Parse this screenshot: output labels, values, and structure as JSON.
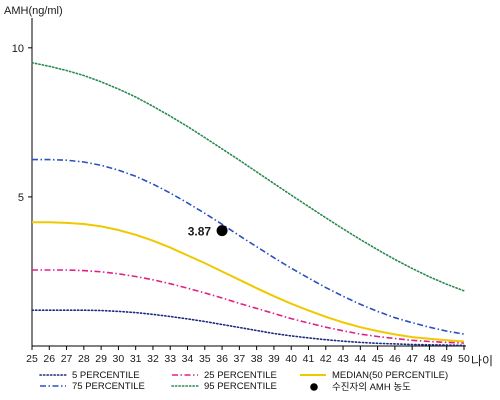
{
  "chart_data": {
    "type": "line",
    "ylabel": "AMH(ng/ml)",
    "xlabel": "나이",
    "x": [
      25,
      26,
      27,
      28,
      29,
      30,
      31,
      32,
      33,
      34,
      35,
      36,
      37,
      38,
      39,
      40,
      41,
      42,
      43,
      44,
      45,
      46,
      47,
      48,
      49,
      50
    ],
    "x_tick_labels": [
      "25",
      "26",
      "27",
      "28",
      "29",
      "30",
      "31",
      "32",
      "33",
      "34",
      "35",
      "36",
      "37",
      "38",
      "39",
      "40",
      "41",
      "42",
      "43",
      "44",
      "45",
      "46",
      "47",
      "48",
      "49",
      "50"
    ],
    "y_ticks": [
      5,
      10
    ],
    "y_tick_labels": [
      "5",
      "10"
    ],
    "ylim": [
      0,
      11
    ],
    "grid": false,
    "legend_position": "bottom",
    "series": [
      {
        "name": "5 PERCENTILE",
        "color": "#1a2a80",
        "dash": "dotted",
        "values": [
          1.2,
          1.2,
          1.2,
          1.2,
          1.19,
          1.16,
          1.12,
          1.06,
          0.99,
          0.91,
          0.82,
          0.72,
          0.62,
          0.52,
          0.42,
          0.34,
          0.27,
          0.21,
          0.16,
          0.12,
          0.09,
          0.07,
          0.05,
          0.04,
          0.03,
          0.02
        ]
      },
      {
        "name": "25 PERCENTILE",
        "color": "#e0208a",
        "dash": "dashdot",
        "values": [
          2.55,
          2.55,
          2.55,
          2.53,
          2.49,
          2.42,
          2.33,
          2.22,
          2.09,
          1.94,
          1.78,
          1.61,
          1.43,
          1.26,
          1.09,
          0.92,
          0.77,
          0.63,
          0.51,
          0.4,
          0.32,
          0.25,
          0.19,
          0.15,
          0.12,
          0.1
        ]
      },
      {
        "name": "MEDIAN(50 PERCENTILE)",
        "color": "#f0c800",
        "dash": "solid",
        "values": [
          4.15,
          4.15,
          4.13,
          4.09,
          4.01,
          3.89,
          3.73,
          3.53,
          3.3,
          3.04,
          2.78,
          2.5,
          2.22,
          1.94,
          1.67,
          1.42,
          1.19,
          0.98,
          0.79,
          0.63,
          0.5,
          0.39,
          0.3,
          0.24,
          0.19,
          0.15
        ]
      },
      {
        "name": "75 PERCENTILE",
        "color": "#2a50c0",
        "dash": "dashdot",
        "values": [
          6.25,
          6.25,
          6.23,
          6.17,
          6.06,
          5.9,
          5.69,
          5.43,
          5.13,
          4.8,
          4.45,
          4.08,
          3.7,
          3.33,
          2.96,
          2.61,
          2.28,
          1.96,
          1.67,
          1.4,
          1.16,
          0.95,
          0.78,
          0.63,
          0.5,
          0.4
        ]
      },
      {
        "name": "95 PERCENTILE",
        "color": "#2a8a50",
        "dash": "dotted",
        "values": [
          9.5,
          9.38,
          9.24,
          9.07,
          8.86,
          8.62,
          8.35,
          8.04,
          7.71,
          7.36,
          6.99,
          6.61,
          6.23,
          5.84,
          5.45,
          5.06,
          4.68,
          4.3,
          3.93,
          3.57,
          3.23,
          2.9,
          2.6,
          2.32,
          2.07,
          1.85
        ]
      }
    ],
    "marker": {
      "name": "수진자의 AMH 농도",
      "x": 36,
      "y": 3.87,
      "label": "3.87",
      "color": "#000000"
    }
  }
}
